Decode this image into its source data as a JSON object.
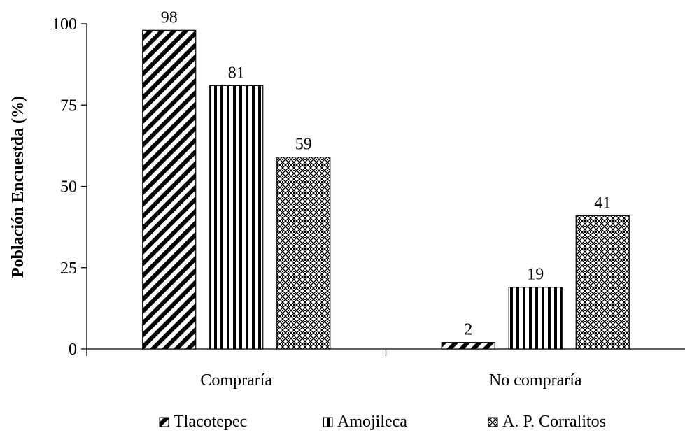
{
  "chart_data": {
    "type": "bar",
    "categories": [
      "Compraría",
      "No compraría"
    ],
    "series": [
      {
        "name": "Tlacotepec",
        "values": [
          98,
          2
        ],
        "pattern": "diagonal-stripes"
      },
      {
        "name": "Amojileca",
        "values": [
          81,
          19
        ],
        "pattern": "vertical-stripes"
      },
      {
        "name": "A. P. Corralitos",
        "values": [
          59,
          41
        ],
        "pattern": "crosshatch-dots"
      }
    ],
    "data_labels": [
      [
        "98",
        "2"
      ],
      [
        "81",
        "19"
      ],
      [
        "59",
        "41"
      ]
    ],
    "ylabel": "Población Encuestda (%)",
    "xlabel": "",
    "ylim": [
      0,
      100
    ],
    "yticks": [
      "0",
      "25",
      "50",
      "75",
      "100"
    ],
    "ytick_values": [
      0,
      25,
      50,
      75,
      100
    ],
    "grid": false,
    "legend_position": "bottom",
    "colors": {
      "ink": "#000000",
      "background": "#ffffff"
    }
  }
}
